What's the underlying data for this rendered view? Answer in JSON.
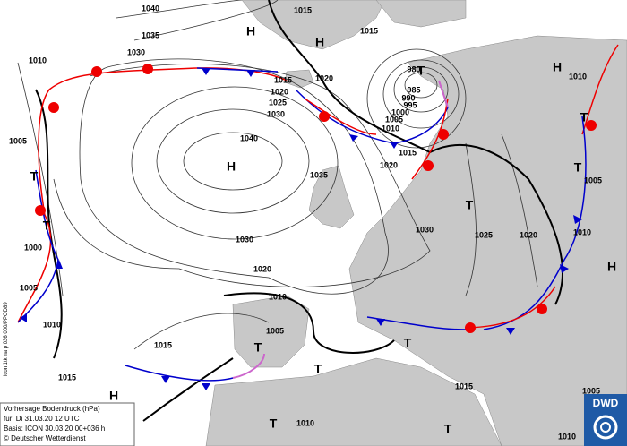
{
  "map": {
    "labels": [
      "1040",
      "1015",
      "1035",
      "1030",
      "H",
      "H",
      "1015",
      "1010",
      "980",
      "T",
      "985",
      "990",
      "995",
      "1000",
      "1005",
      "1010",
      "1015",
      "1020",
      "1020",
      "1015",
      "1020",
      "1025",
      "1030",
      "H",
      "1010",
      "T",
      "T",
      "1005",
      "1005",
      "T",
      "T",
      "1000",
      "1005",
      "1010",
      "1040",
      "H",
      "1035",
      "T",
      "1030",
      "1025",
      "1020",
      "1010",
      "H",
      "1030",
      "1020",
      "1010",
      "1005",
      "T",
      "T",
      "T",
      "1015",
      "1015",
      "H",
      "1015",
      "1005",
      "1010",
      "1010",
      "T",
      "T"
    ],
    "side_label": "icon 1tk na p 036 000/PPOD89",
    "info_box": [
      "Vorhersage Bodendruck (hPa)",
      "für:  Di 31.03.20  12 UTC",
      "Basis: ICON  30.03.20 00+036 h",
      "© Deutscher Wetterdienst"
    ],
    "logo": "DWD"
  }
}
